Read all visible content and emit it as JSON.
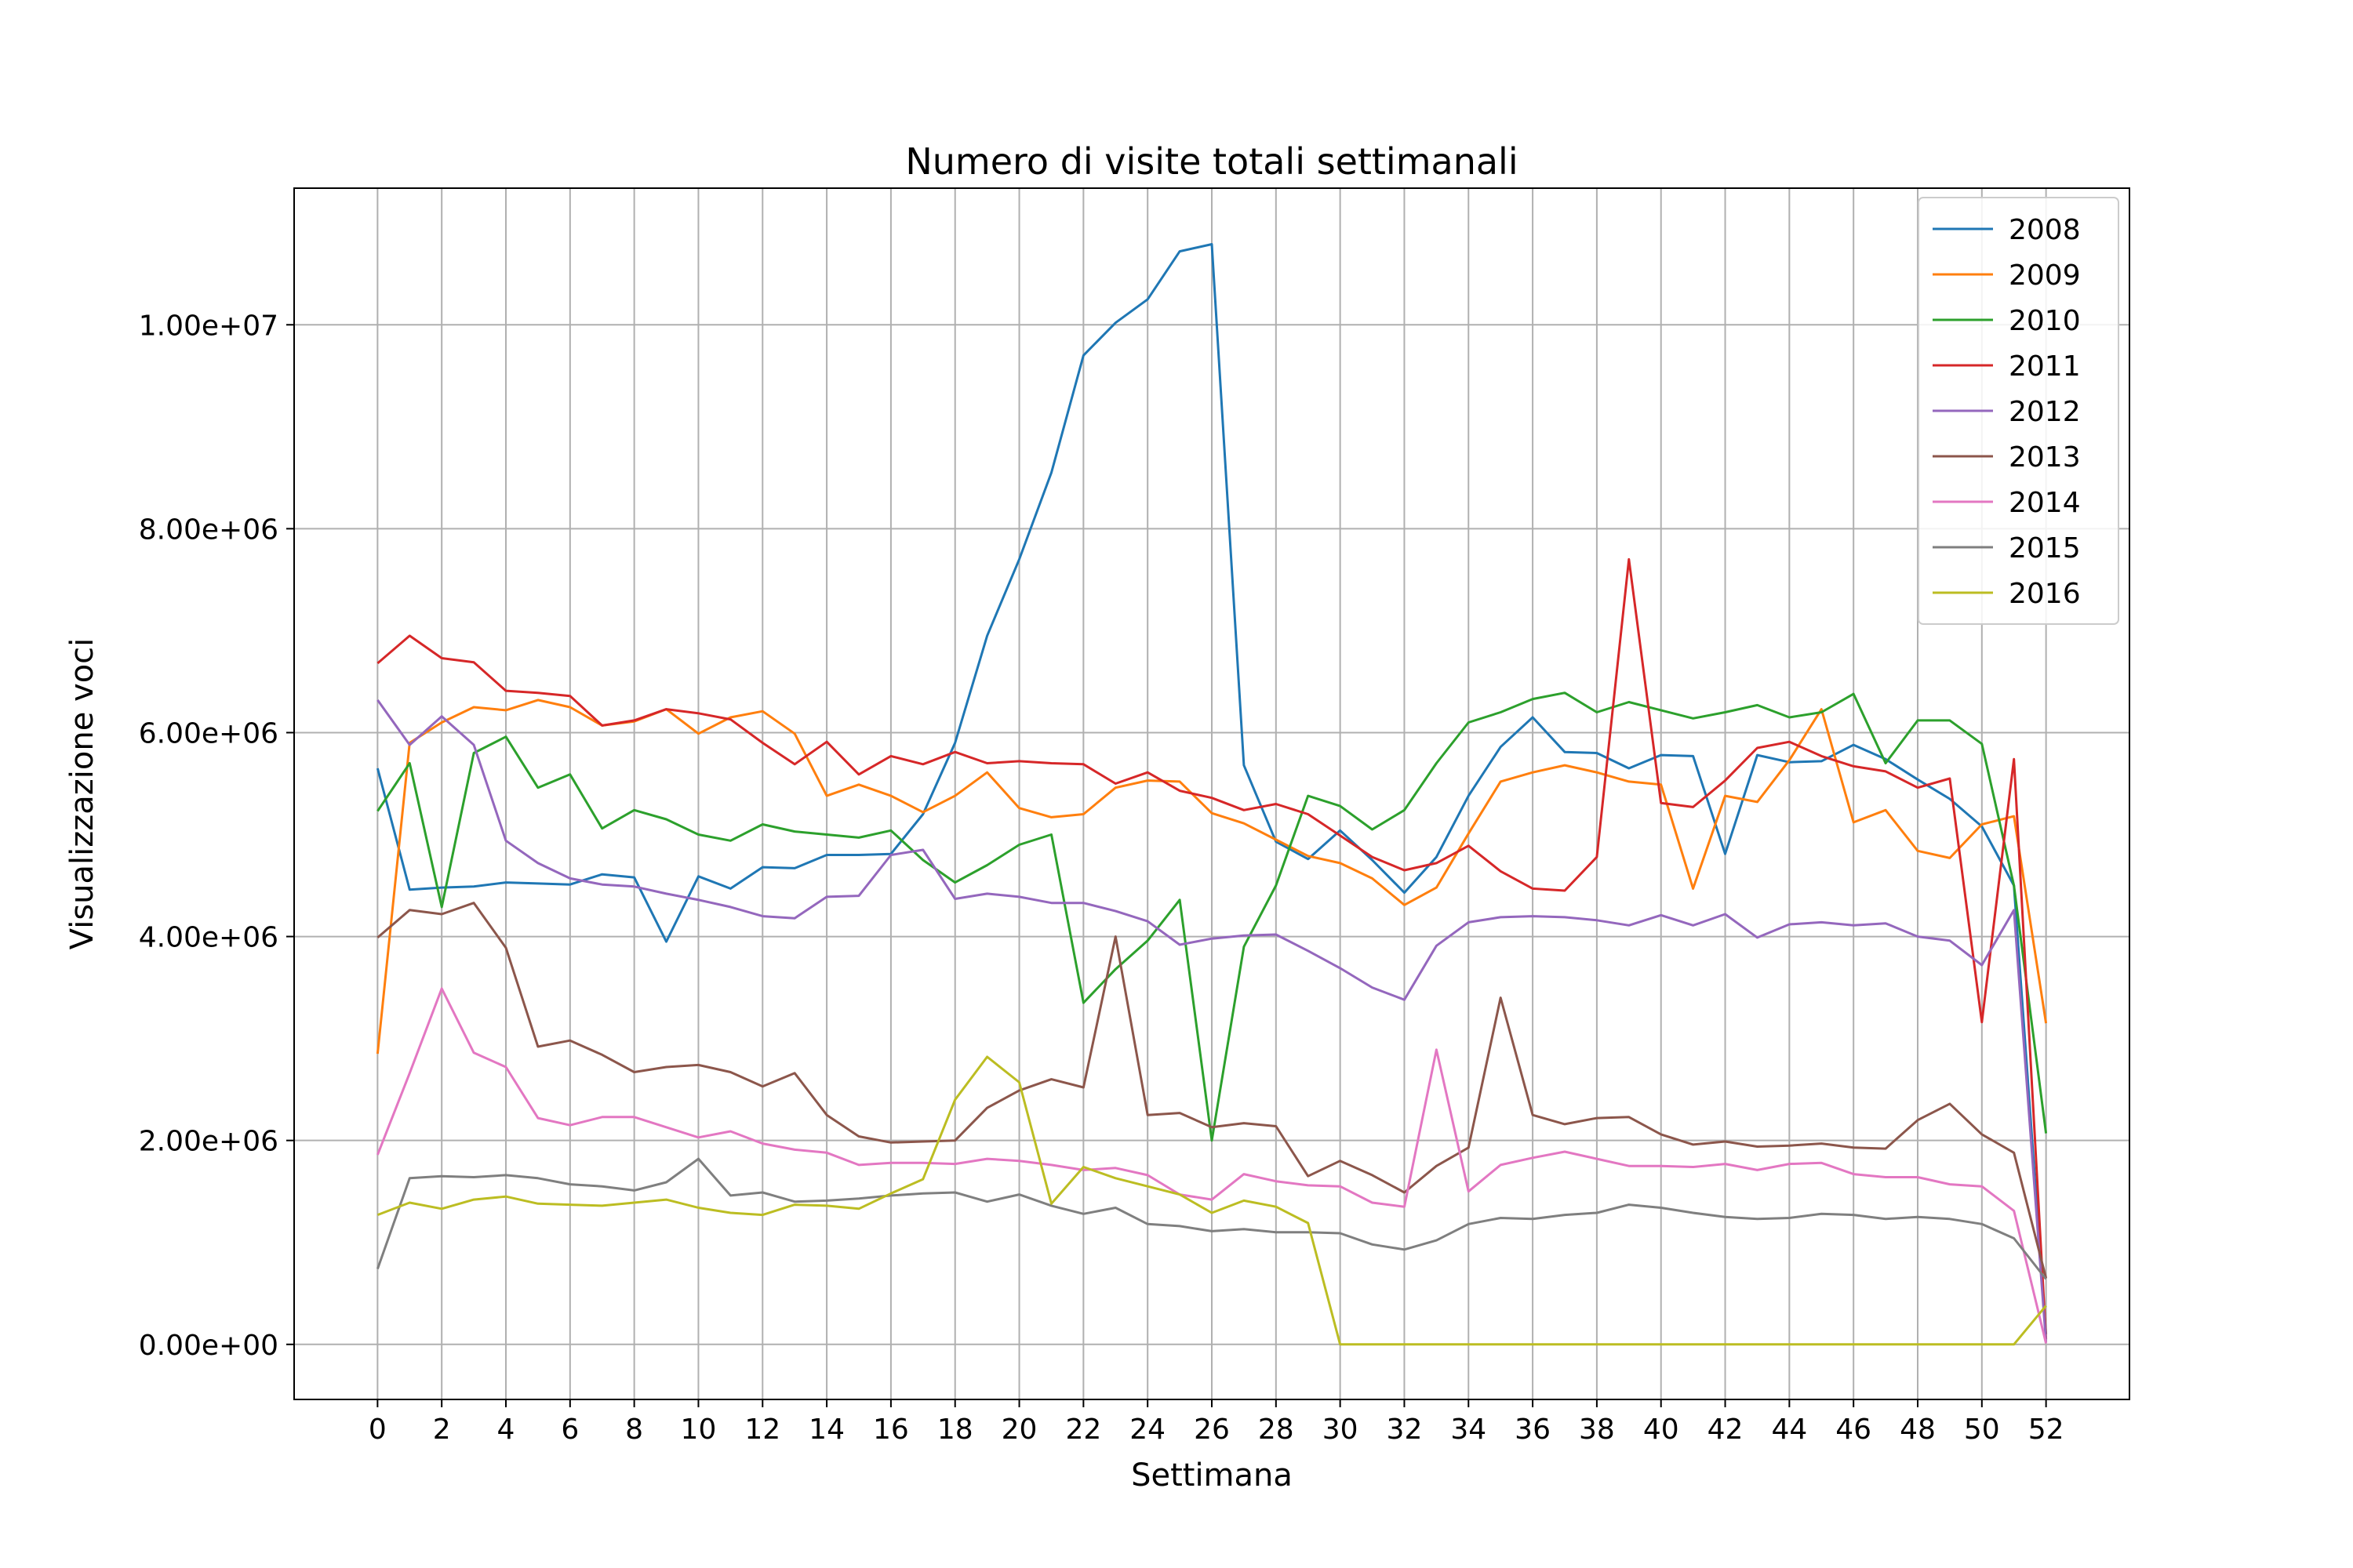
{
  "chart_data": {
    "type": "line",
    "title": "Numero di visite totali settimanali",
    "xlabel": "Settimana",
    "ylabel": "Visualizzazione voci",
    "xlim": [
      -2.6,
      54.6
    ],
    "ylim": [
      -540000,
      11340000
    ],
    "x_ticks": [
      0,
      2,
      4,
      6,
      8,
      10,
      12,
      14,
      16,
      18,
      20,
      22,
      24,
      26,
      28,
      30,
      32,
      34,
      36,
      38,
      40,
      42,
      44,
      46,
      48,
      50,
      52
    ],
    "x_tick_labels": [
      "0",
      "2",
      "4",
      "6",
      "8",
      "10",
      "12",
      "14",
      "16",
      "18",
      "20",
      "22",
      "24",
      "26",
      "28",
      "30",
      "32",
      "34",
      "36",
      "38",
      "40",
      "42",
      "44",
      "46",
      "48",
      "50",
      "52"
    ],
    "y_ticks": [
      0,
      2000000,
      4000000,
      6000000,
      8000000,
      10000000
    ],
    "y_tick_labels": [
      "0.00e+00",
      "2.00e+06",
      "4.00e+06",
      "6.00e+06",
      "8.00e+06",
      "1.00e+07"
    ],
    "grid": true,
    "legend_position": "top-right",
    "x": [
      0,
      1,
      2,
      3,
      4,
      5,
      6,
      7,
      8,
      9,
      10,
      11,
      12,
      13,
      14,
      15,
      16,
      17,
      18,
      19,
      20,
      21,
      22,
      23,
      24,
      25,
      26,
      27,
      28,
      29,
      30,
      31,
      32,
      33,
      34,
      35,
      36,
      37,
      38,
      39,
      40,
      41,
      42,
      43,
      44,
      45,
      46,
      47,
      48,
      49,
      50,
      51,
      52
    ],
    "series": [
      {
        "name": "2008",
        "color": "#1f77b4",
        "values": [
          5650000,
          4460000,
          4480000,
          4490000,
          4530000,
          4520000,
          4510000,
          4610000,
          4580000,
          3950000,
          4590000,
          4470000,
          4680000,
          4670000,
          4800000,
          4800000,
          4810000,
          5200000,
          5900000,
          6950000,
          7700000,
          8550000,
          9700000,
          10020000,
          10250000,
          10720000,
          10790000,
          5680000,
          4930000,
          4760000,
          5040000,
          4750000,
          4430000,
          4780000,
          5380000,
          5860000,
          6150000,
          5810000,
          5800000,
          5650000,
          5780000,
          5770000,
          4810000,
          5780000,
          5710000,
          5720000,
          5880000,
          5740000,
          5540000,
          5350000,
          5080000,
          4500000,
          100000
        ]
      },
      {
        "name": "2009",
        "color": "#ff7f0e",
        "values": [
          2850000,
          5900000,
          6100000,
          6250000,
          6220000,
          6320000,
          6250000,
          6070000,
          6110000,
          6230000,
          5990000,
          6150000,
          6210000,
          5990000,
          5380000,
          5490000,
          5380000,
          5220000,
          5380000,
          5610000,
          5260000,
          5170000,
          5200000,
          5460000,
          5530000,
          5520000,
          5210000,
          5110000,
          4950000,
          4790000,
          4720000,
          4570000,
          4310000,
          4480000,
          5010000,
          5520000,
          5610000,
          5680000,
          5610000,
          5520000,
          5490000,
          4470000,
          5380000,
          5320000,
          5730000,
          6230000,
          5120000,
          5240000,
          4840000,
          4770000,
          5100000,
          5180000,
          3150000
        ]
      },
      {
        "name": "2010",
        "color": "#2ca02c",
        "values": [
          5230000,
          5700000,
          4290000,
          5800000,
          5960000,
          5460000,
          5590000,
          5060000,
          5240000,
          5150000,
          5000000,
          4940000,
          5100000,
          5030000,
          5000000,
          4970000,
          5040000,
          4750000,
          4530000,
          4700000,
          4900000,
          5000000,
          3350000,
          3680000,
          3960000,
          4360000,
          2000000,
          3900000,
          4500000,
          5380000,
          5280000,
          5050000,
          5240000,
          5700000,
          6100000,
          6200000,
          6330000,
          6390000,
          6200000,
          6300000,
          6220000,
          6140000,
          6200000,
          6270000,
          6150000,
          6200000,
          6380000,
          5700000,
          6120000,
          6120000,
          5890000,
          4500000,
          2070000
        ]
      },
      {
        "name": "2011",
        "color": "#d62728",
        "values": [
          6680000,
          6950000,
          6730000,
          6690000,
          6410000,
          6390000,
          6360000,
          6070000,
          6120000,
          6230000,
          6190000,
          6130000,
          5900000,
          5690000,
          5910000,
          5590000,
          5770000,
          5690000,
          5810000,
          5700000,
          5720000,
          5700000,
          5690000,
          5500000,
          5610000,
          5430000,
          5360000,
          5240000,
          5300000,
          5200000,
          4990000,
          4780000,
          4650000,
          4720000,
          4890000,
          4640000,
          4470000,
          4450000,
          4780000,
          7700000,
          5310000,
          5270000,
          5530000,
          5850000,
          5910000,
          5770000,
          5670000,
          5620000,
          5460000,
          5550000,
          3160000,
          5740000,
          50000
        ]
      },
      {
        "name": "2012",
        "color": "#9467bd",
        "values": [
          6320000,
          5880000,
          6160000,
          5880000,
          4940000,
          4720000,
          4570000,
          4510000,
          4490000,
          4420000,
          4360000,
          4290000,
          4200000,
          4180000,
          4390000,
          4400000,
          4800000,
          4850000,
          4370000,
          4420000,
          4390000,
          4330000,
          4330000,
          4250000,
          4150000,
          3920000,
          3980000,
          4010000,
          4020000,
          3860000,
          3690000,
          3500000,
          3380000,
          3910000,
          4140000,
          4190000,
          4200000,
          4190000,
          4160000,
          4110000,
          4210000,
          4110000,
          4220000,
          3990000,
          4120000,
          4140000,
          4110000,
          4130000,
          4000000,
          3960000,
          3720000,
          4260000,
          20000
        ]
      },
      {
        "name": "2013",
        "color": "#8c564b",
        "values": [
          3990000,
          4260000,
          4220000,
          4330000,
          3890000,
          2920000,
          2980000,
          2840000,
          2670000,
          2720000,
          2740000,
          2670000,
          2530000,
          2660000,
          2250000,
          2040000,
          1980000,
          1990000,
          2000000,
          2320000,
          2490000,
          2600000,
          2520000,
          4000000,
          2250000,
          2270000,
          2130000,
          2170000,
          2140000,
          1650000,
          1800000,
          1660000,
          1490000,
          1750000,
          1930000,
          3400000,
          2250000,
          2160000,
          2220000,
          2230000,
          2060000,
          1960000,
          1990000,
          1940000,
          1950000,
          1970000,
          1930000,
          1920000,
          2200000,
          2360000,
          2060000,
          1880000,
          650000
        ]
      },
      {
        "name": "2014",
        "color": "#e377c2",
        "values": [
          1860000,
          2660000,
          3490000,
          2860000,
          2720000,
          2220000,
          2150000,
          2230000,
          2230000,
          2130000,
          2030000,
          2090000,
          1970000,
          1910000,
          1880000,
          1760000,
          1780000,
          1780000,
          1770000,
          1820000,
          1800000,
          1760000,
          1710000,
          1730000,
          1660000,
          1470000,
          1420000,
          1670000,
          1600000,
          1560000,
          1550000,
          1390000,
          1350000,
          2890000,
          1500000,
          1760000,
          1830000,
          1890000,
          1820000,
          1750000,
          1750000,
          1740000,
          1770000,
          1710000,
          1770000,
          1780000,
          1670000,
          1640000,
          1640000,
          1570000,
          1550000,
          1310000,
          10000
        ]
      },
      {
        "name": "2015",
        "color": "#7f7f7f",
        "values": [
          740000,
          1630000,
          1650000,
          1640000,
          1660000,
          1630000,
          1570000,
          1550000,
          1510000,
          1590000,
          1820000,
          1460000,
          1490000,
          1400000,
          1410000,
          1430000,
          1460000,
          1480000,
          1490000,
          1400000,
          1470000,
          1360000,
          1280000,
          1340000,
          1180000,
          1160000,
          1110000,
          1130000,
          1100000,
          1100000,
          1090000,
          980000,
          930000,
          1020000,
          1180000,
          1240000,
          1230000,
          1270000,
          1290000,
          1370000,
          1340000,
          1290000,
          1250000,
          1230000,
          1240000,
          1280000,
          1270000,
          1230000,
          1250000,
          1230000,
          1180000,
          1040000,
          640000
        ]
      },
      {
        "name": "2016",
        "color": "#bcbd22",
        "values": [
          1270000,
          1390000,
          1330000,
          1420000,
          1450000,
          1380000,
          1370000,
          1360000,
          1390000,
          1420000,
          1340000,
          1290000,
          1270000,
          1370000,
          1360000,
          1330000,
          1480000,
          1620000,
          2400000,
          2820000,
          2570000,
          1380000,
          1740000,
          1630000,
          1550000,
          1470000,
          1290000,
          1410000,
          1350000,
          1190000,
          0,
          0,
          0,
          0,
          0,
          0,
          0,
          0,
          0,
          0,
          0,
          0,
          0,
          0,
          0,
          0,
          0,
          0,
          0,
          0,
          0,
          0,
          380000
        ]
      }
    ]
  }
}
